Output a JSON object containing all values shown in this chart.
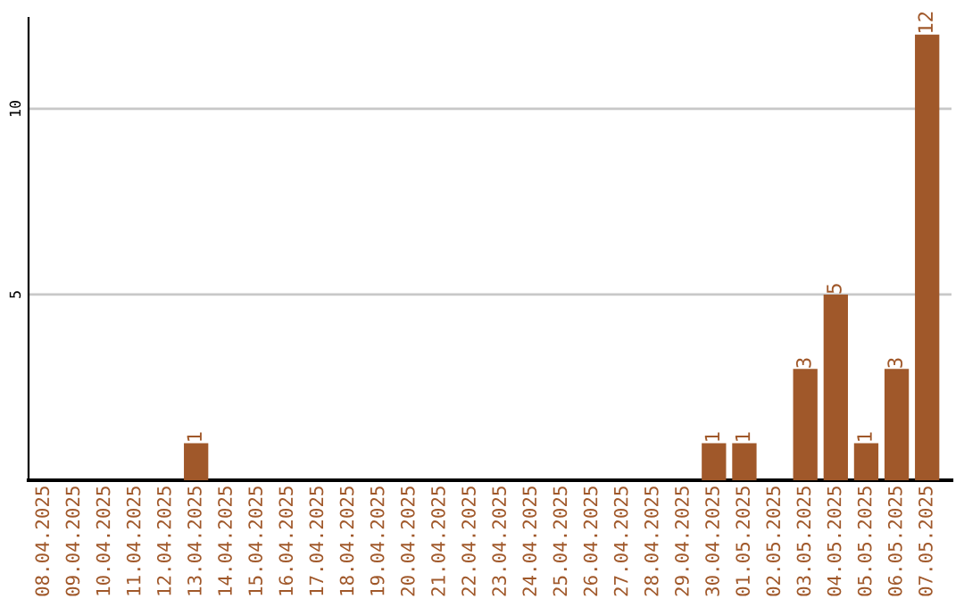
{
  "chart_data": {
    "type": "bar",
    "categories": [
      "08.04.2025",
      "09.04.2025",
      "10.04.2025",
      "11.04.2025",
      "12.04.2025",
      "13.04.2025",
      "14.04.2025",
      "15.04.2025",
      "16.04.2025",
      "17.04.2025",
      "18.04.2025",
      "19.04.2025",
      "20.04.2025",
      "21.04.2025",
      "22.04.2025",
      "23.04.2025",
      "24.04.2025",
      "25.04.2025",
      "26.04.2025",
      "27.04.2025",
      "28.04.2025",
      "29.04.2025",
      "30.04.2025",
      "01.05.2025",
      "02.05.2025",
      "03.05.2025",
      "04.05.2025",
      "05.05.2025",
      "06.05.2025",
      "07.05.2025"
    ],
    "values": [
      0,
      0,
      0,
      0,
      0,
      1,
      0,
      0,
      0,
      0,
      0,
      0,
      0,
      0,
      0,
      0,
      0,
      0,
      0,
      0,
      0,
      0,
      1,
      1,
      0,
      3,
      5,
      1,
      3,
      12
    ],
    "value_labels": [
      null,
      null,
      null,
      null,
      null,
      "1",
      null,
      null,
      null,
      null,
      null,
      null,
      null,
      null,
      null,
      null,
      null,
      null,
      null,
      null,
      null,
      null,
      "1",
      "1",
      null,
      "3",
      "5",
      "1",
      "3",
      "12"
    ],
    "color": "#a0582a",
    "ylim": [
      0,
      12.45
    ],
    "yticks": [
      5,
      10
    ],
    "grid": "y"
  }
}
